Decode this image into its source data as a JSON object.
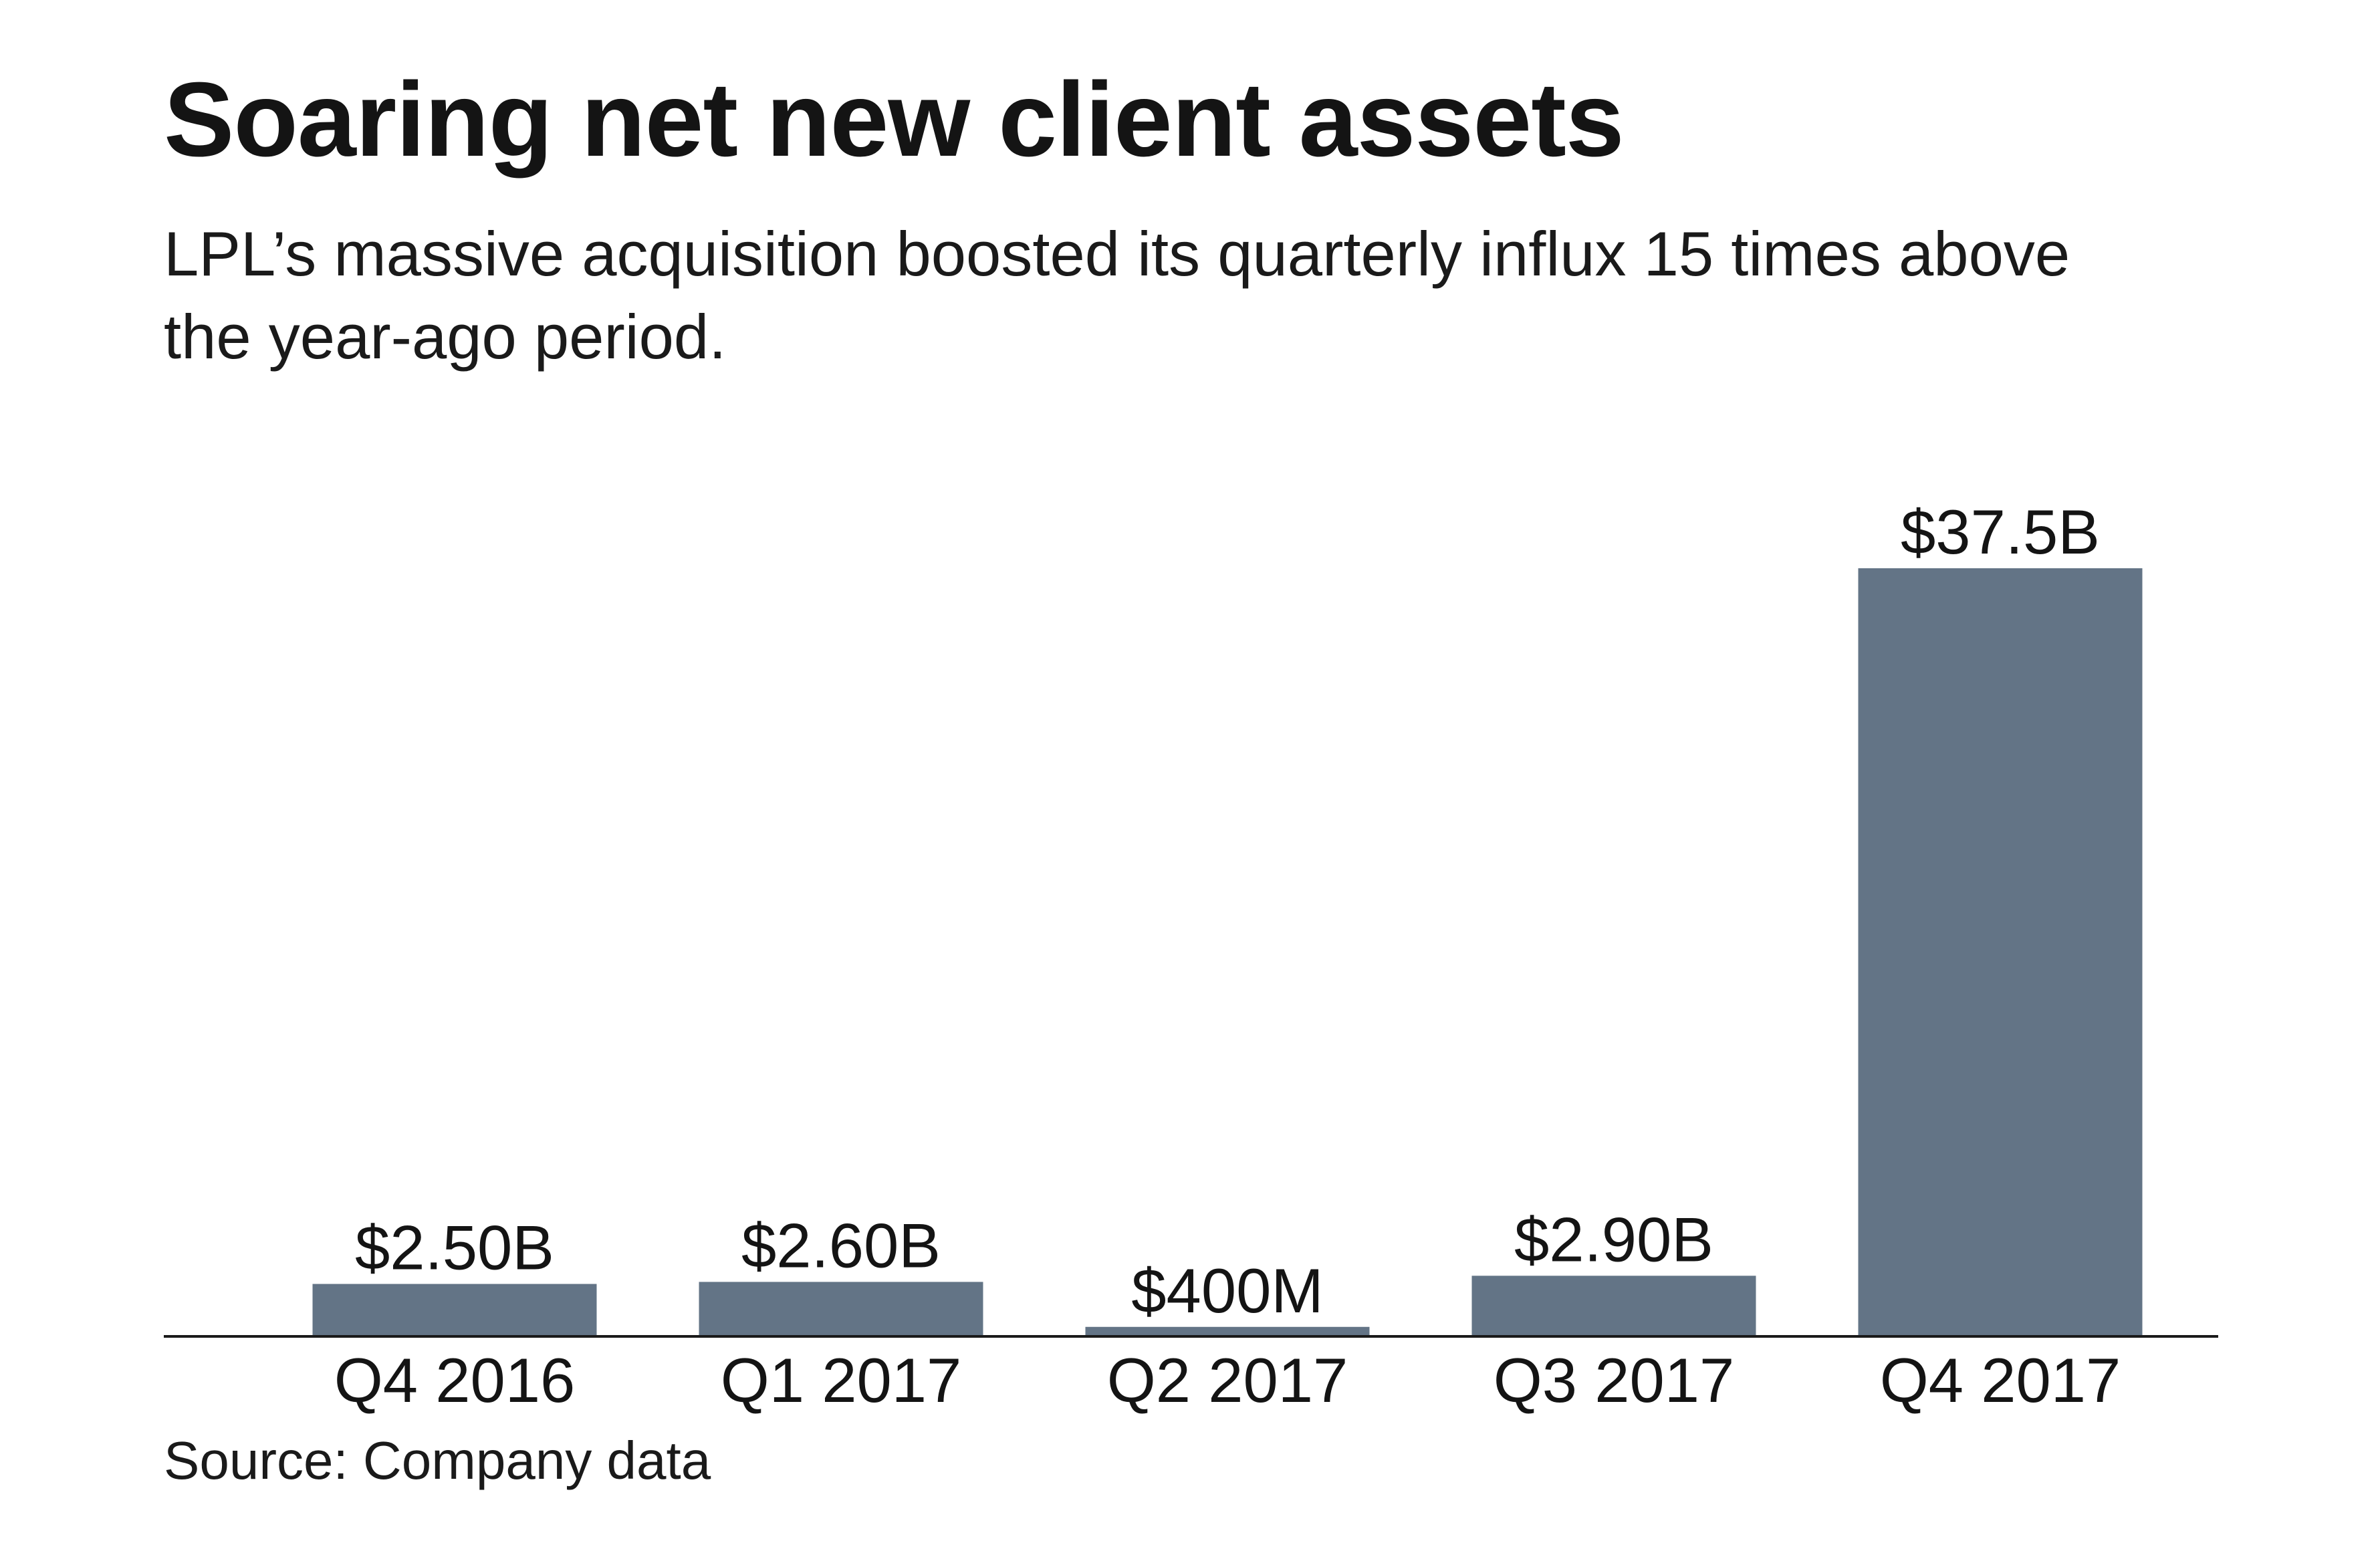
{
  "chart_data": {
    "type": "bar",
    "title": "Soaring net new client assets",
    "subtitle": "LPL’s massive acquisition boosted its quarterly influx 15 times above the year-ago period.",
    "categories": [
      "Q4 2016",
      "Q1 2017",
      "Q2 2017",
      "Q3 2017",
      "Q4 2017"
    ],
    "values": [
      2.5,
      2.6,
      0.4,
      2.9,
      37.5
    ],
    "value_labels": [
      "$2.50B",
      "$2.60B",
      "$400M",
      "$2.90B",
      "$37.5B"
    ],
    "unit": "billions of dollars",
    "xlabel": "",
    "ylabel": "",
    "ylim": [
      0,
      37.5
    ],
    "grid": false,
    "legend": "none",
    "bar_color": "#637486",
    "source": "Source: Company data"
  }
}
